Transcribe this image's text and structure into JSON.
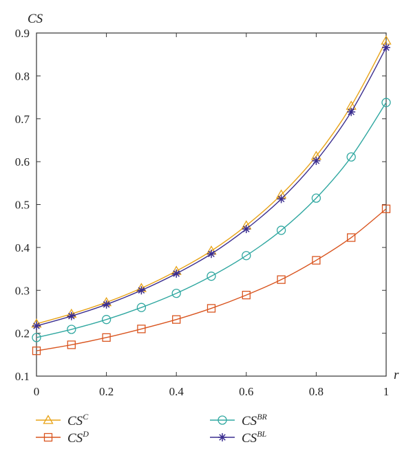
{
  "chart_data": {
    "type": "line",
    "xlabel": "r",
    "ylabel": "CS",
    "xlim": [
      0,
      1
    ],
    "ylim": [
      0.1,
      0.9
    ],
    "x_ticks": [
      "0",
      "0.2",
      "0.4",
      "0.6",
      "0.8",
      "1"
    ],
    "y_ticks": [
      "0.1",
      "0.2",
      "0.3",
      "0.4",
      "0.5",
      "0.6",
      "0.7",
      "0.8",
      "0.9"
    ],
    "grid": false,
    "legend_position": "bottom",
    "x": [
      0,
      0.1,
      0.2,
      0.3,
      0.4,
      0.5,
      0.6,
      0.7,
      0.8,
      0.9,
      1.0
    ],
    "series": [
      {
        "name": "CS^C",
        "label_base": "CS",
        "label_sup": "C",
        "color": "#e8a317",
        "marker": "triangle",
        "values": [
          0.222,
          0.245,
          0.272,
          0.305,
          0.345,
          0.392,
          0.451,
          0.523,
          0.613,
          0.73,
          0.882
        ]
      },
      {
        "name": "CS^D",
        "label_base": "CS",
        "label_sup": "D",
        "color": "#d9541e",
        "marker": "square",
        "values": [
          0.159,
          0.173,
          0.19,
          0.21,
          0.232,
          0.258,
          0.289,
          0.325,
          0.37,
          0.423,
          0.49
        ]
      },
      {
        "name": "CS^BR",
        "label_base": "CS",
        "label_sup": "BR",
        "color": "#2fa7a0",
        "marker": "circle",
        "values": [
          0.19,
          0.209,
          0.232,
          0.26,
          0.293,
          0.333,
          0.381,
          0.44,
          0.515,
          0.611,
          0.738
        ]
      },
      {
        "name": "CS^BL",
        "label_base": "CS",
        "label_sup": "BL",
        "color": "#3a2d8f",
        "marker": "star",
        "values": [
          0.217,
          0.24,
          0.267,
          0.3,
          0.339,
          0.385,
          0.443,
          0.513,
          0.602,
          0.716,
          0.866
        ]
      }
    ]
  }
}
